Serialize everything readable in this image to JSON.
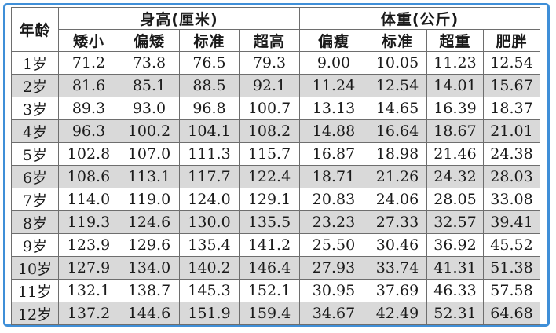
{
  "table": {
    "age_header": "年龄",
    "height_header": "身高(厘米)",
    "weight_header": "体重(公斤)",
    "height_columns": [
      "矮小",
      "偏矮",
      "标准",
      "超高"
    ],
    "weight_columns": [
      "偏瘦",
      "标准",
      "超重",
      "肥胖"
    ],
    "rows": [
      {
        "age": "1岁",
        "height": [
          "71.2",
          "73.8",
          "76.5",
          "79.3"
        ],
        "weight": [
          "9.00",
          "10.05",
          "11.23",
          "12.54"
        ]
      },
      {
        "age": "2岁",
        "height": [
          "81.6",
          "85.1",
          "88.5",
          "92.1"
        ],
        "weight": [
          "11.24",
          "12.54",
          "14.01",
          "15.67"
        ]
      },
      {
        "age": "3岁",
        "height": [
          "89.3",
          "93.0",
          "96.8",
          "100.7"
        ],
        "weight": [
          "13.13",
          "14.65",
          "16.39",
          "18.37"
        ]
      },
      {
        "age": "4岁",
        "height": [
          "96.3",
          "100.2",
          "104.1",
          "108.2"
        ],
        "weight": [
          "14.88",
          "16.64",
          "18.67",
          "21.01"
        ]
      },
      {
        "age": "5岁",
        "height": [
          "102.8",
          "107.0",
          "111.3",
          "115.7"
        ],
        "weight": [
          "16.87",
          "18.98",
          "21.46",
          "24.38"
        ]
      },
      {
        "age": "6岁",
        "height": [
          "108.6",
          "113.1",
          "117.7",
          "122.4"
        ],
        "weight": [
          "18.71",
          "21.26",
          "24.32",
          "28.03"
        ]
      },
      {
        "age": "7岁",
        "height": [
          "114.0",
          "119.0",
          "124.0",
          "129.1"
        ],
        "weight": [
          "20.83",
          "24.06",
          "28.05",
          "33.08"
        ]
      },
      {
        "age": "8岁",
        "height": [
          "119.3",
          "124.6",
          "130.0",
          "135.5"
        ],
        "weight": [
          "23.23",
          "27.33",
          "32.57",
          "39.41"
        ]
      },
      {
        "age": "9岁",
        "height": [
          "123.9",
          "129.6",
          "135.4",
          "141.2"
        ],
        "weight": [
          "25.50",
          "30.46",
          "36.92",
          "45.52"
        ]
      },
      {
        "age": "10岁",
        "height": [
          "127.9",
          "134.0",
          "140.2",
          "146.4"
        ],
        "weight": [
          "27.93",
          "33.74",
          "41.31",
          "51.38"
        ]
      },
      {
        "age": "11岁",
        "height": [
          "132.1",
          "138.7",
          "145.3",
          "152.1"
        ],
        "weight": [
          "30.95",
          "37.69",
          "46.33",
          "57.58"
        ]
      },
      {
        "age": "12岁",
        "height": [
          "137.2",
          "144.6",
          "151.9",
          "159.4"
        ],
        "weight": [
          "34.67",
          "42.49",
          "52.31",
          "64.68"
        ]
      }
    ]
  },
  "colors": {
    "frame_border": "#3f8fd8",
    "row_shade": "#d9d9d9",
    "grid_line": "#6e6e6e"
  }
}
